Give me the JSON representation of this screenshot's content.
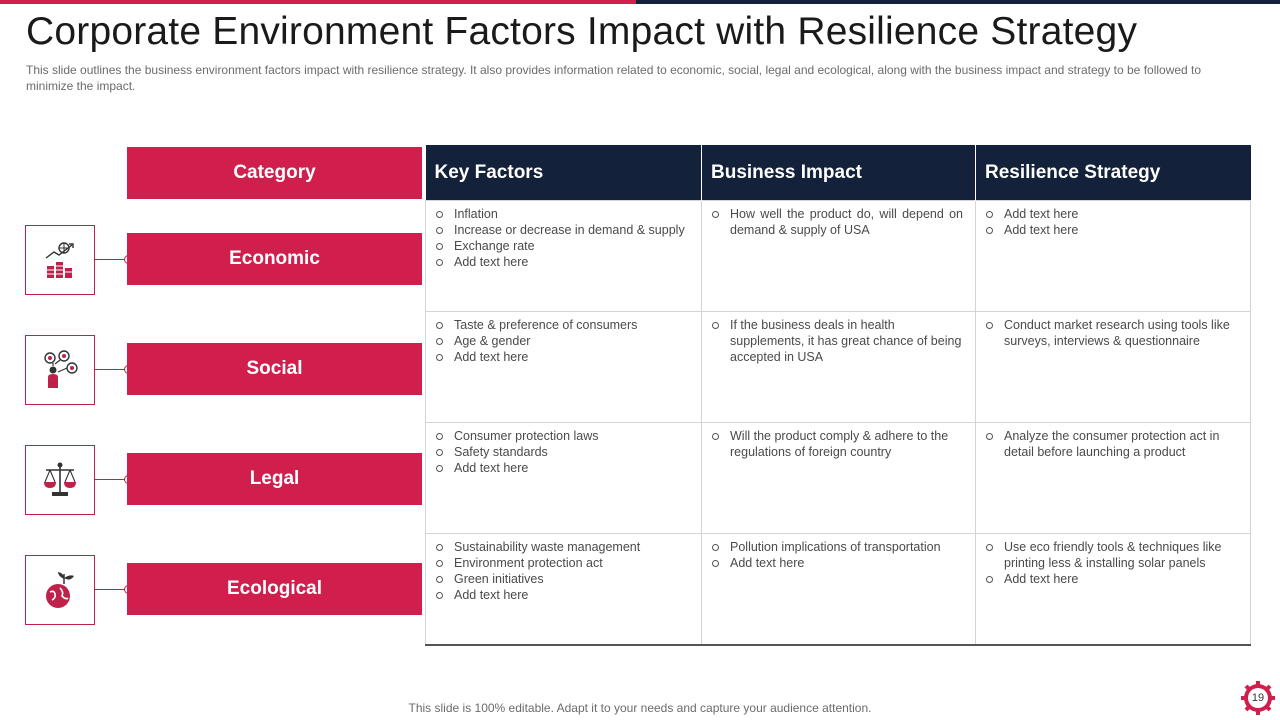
{
  "slide": {
    "title": "Corporate Environment Factors Impact with Resilience Strategy",
    "subtitle": "This slide outlines the business environment  factors impact with resilience strategy. It also provides  information related to  economic, social, legal and ecological, along with the business impact and strategy to be followed  to minimize the impact.",
    "footer": "This slide is 100% editable. Adapt it to your  needs and capture your audience attention.",
    "page_number": "19"
  },
  "colors": {
    "accent": "#d11f4d",
    "header_dark": "#14213a"
  },
  "category_header": "Category",
  "columns": [
    "Key Factors",
    "Business Impact",
    "Resilience Strategy"
  ],
  "rows": [
    {
      "category": "Economic",
      "icon": "money-growth-icon",
      "key_factors": [
        "Inflation",
        "Increase or decrease in demand & supply",
        "Exchange rate",
        "Add text here"
      ],
      "business_impact": [
        "How well the product do, will depend on demand & supply of USA"
      ],
      "resilience_strategy": [
        "Add text here",
        "Add text here"
      ]
    },
    {
      "category": "Social",
      "icon": "people-network-icon",
      "key_factors": [
        "Taste & preference  of consumers",
        "Age & gender",
        "Add text here"
      ],
      "business_impact": [
        "If the business deals in health supplements, it has great chance of being accepted in USA"
      ],
      "resilience_strategy": [
        "Conduct market research  using tools like surveys,  interviews  & questionnaire"
      ]
    },
    {
      "category": "Legal",
      "icon": "scales-icon",
      "key_factors": [
        "Consumer protection laws",
        "Safety standards",
        "Add text here"
      ],
      "business_impact": [
        "Will the product comply & adhere to the regulations of foreign country"
      ],
      "resilience_strategy": [
        "Analyze the consumer protection act in detail before launching  a product"
      ]
    },
    {
      "category": "Ecological",
      "icon": "earth-plant-icon",
      "key_factors": [
        "Sustainability waste management",
        "Environment  protection act",
        "Green initiatives",
        "Add text here"
      ],
      "business_impact": [
        " Pollution implications of transportation",
        "Add text here"
      ],
      "resilience_strategy": [
        "Use eco friendly  tools & techniques  like printing less & installing solar panels",
        "Add text here"
      ]
    }
  ]
}
